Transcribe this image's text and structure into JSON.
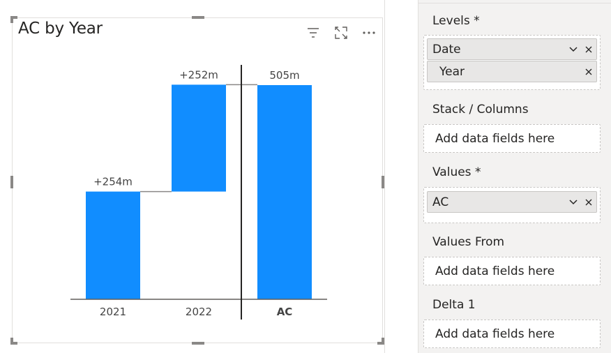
{
  "visual": {
    "title": "AC by Year",
    "icons": [
      "filter-icon",
      "focus-mode-icon",
      "more-options-icon"
    ]
  },
  "chart_data": {
    "type": "bar",
    "subtype": "waterfall",
    "categories": [
      "2021",
      "2022",
      "AC"
    ],
    "values": [
      254,
      252,
      505
    ],
    "unit": "m",
    "data_labels": [
      "+254m",
      "+252m",
      "505m"
    ],
    "total_category": "AC",
    "ylim": [
      0,
      505
    ],
    "color": "#118dff",
    "grid": false,
    "legend": "none"
  },
  "panel": {
    "levels": {
      "label": "Levels *",
      "fields": [
        {
          "name": "Date",
          "has_chevron": true,
          "has_remove": true
        },
        {
          "name": "Year",
          "has_chevron": false,
          "has_remove": true
        }
      ]
    },
    "stack": {
      "label": "Stack / Columns",
      "placeholder": "Add data fields here"
    },
    "values": {
      "label": "Values *",
      "fields": [
        {
          "name": "AC",
          "has_chevron": true,
          "has_remove": true
        }
      ]
    },
    "values_from": {
      "label": "Values From",
      "placeholder": "Add data fields here"
    },
    "delta1": {
      "label": "Delta 1",
      "placeholder": "Add data fields here"
    }
  }
}
